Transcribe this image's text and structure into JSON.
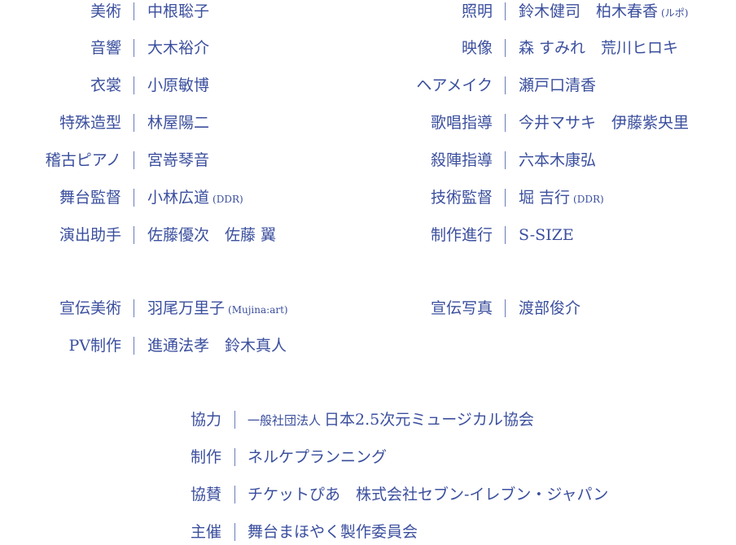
{
  "color": "#3b4f9e",
  "left": [
    {
      "label": "美術",
      "value": "中根聡子"
    },
    {
      "label": "音響",
      "value": "大木裕介"
    },
    {
      "label": "衣裳",
      "value": "小原敏博"
    },
    {
      "label": "特殊造型",
      "value": "林屋陽二"
    },
    {
      "label": "稽古ピアノ",
      "value": "宮嵜琴音"
    },
    {
      "label": "舞台監督",
      "value": "小林広道",
      "note": "(DDR)"
    },
    {
      "label": "演出助手",
      "value": "佐藤優次　佐藤 翼"
    },
    {
      "label": "宣伝美術",
      "value": "羽尾万里子",
      "note": "(Mujina:art)"
    },
    {
      "label": "PV制作",
      "value": "進通法孝　鈴木真人"
    }
  ],
  "right": [
    {
      "label": "照明",
      "value": "鈴木健司　柏木春香",
      "note": "(ルポ)"
    },
    {
      "label": "映像",
      "value": "森 すみれ　荒川ヒロキ"
    },
    {
      "label": "ヘアメイク",
      "value": "瀬戸口清香"
    },
    {
      "label": "歌唱指導",
      "value": "今井マサキ　伊藤紫央里"
    },
    {
      "label": "殺陣指導",
      "value": "六本木康弘"
    },
    {
      "label": "技術監督",
      "value": "堀 吉行",
      "note": "(DDR)"
    },
    {
      "label": "制作進行",
      "value": "S-SIZE"
    },
    {
      "label": "宣伝写真",
      "value": "渡部俊介"
    }
  ],
  "bottom": [
    {
      "label": "協力",
      "prefix": "一般社団法人",
      "value": "日本2.5次元ミュージカル協会"
    },
    {
      "label": "制作",
      "value": " ネルケプランニング"
    },
    {
      "label": "協賛",
      "value": " チケットぴあ　株式会社セブン-イレブン・ジャパン"
    },
    {
      "label": "主催",
      "value": " 舞台まほやく製作委員会"
    }
  ]
}
